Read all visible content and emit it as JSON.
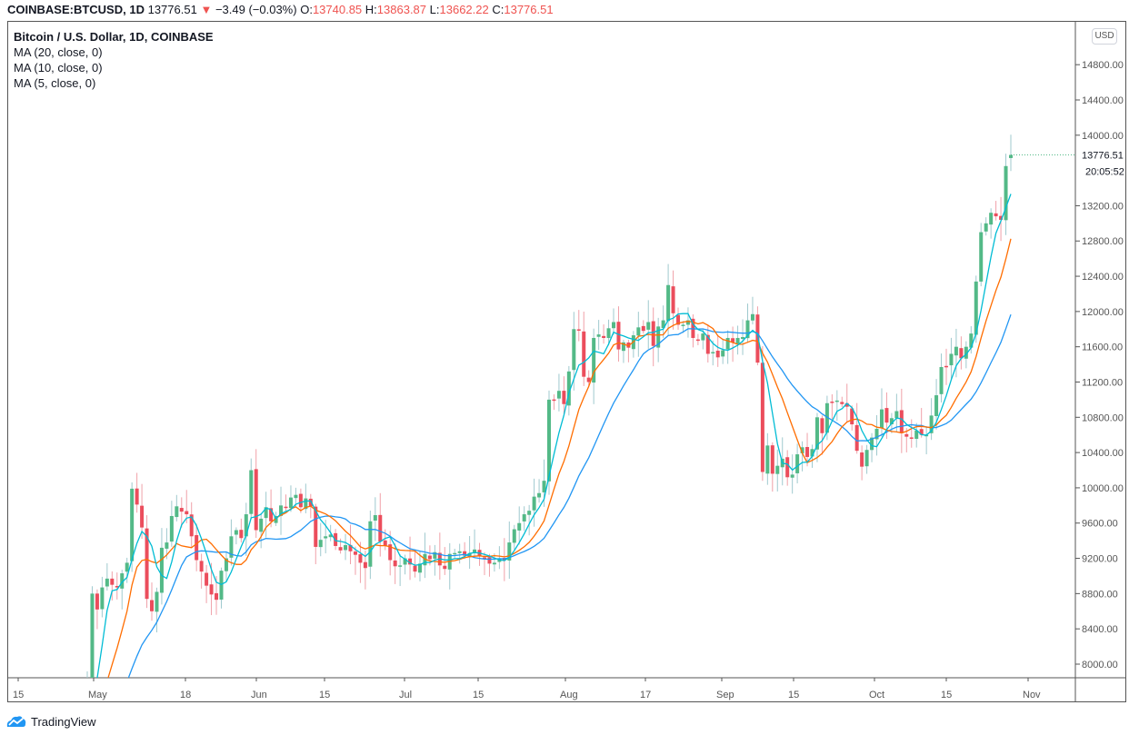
{
  "header": {
    "symbol": "COINBASE:BTCUSD, 1D",
    "last_price": "13776.51",
    "change_arrow": "▼",
    "change": "−3.49 (−0.03%)",
    "open_label": "O:",
    "open": "13740.85",
    "high_label": "H:",
    "high": "13863.87",
    "low_label": "L:",
    "low": "13662.22",
    "close_label": "C:",
    "close": "13776.51"
  },
  "legend": {
    "title": "Bitcoin / U.S. Dollar, 1D, COINBASE",
    "indicators": [
      "MA (20, close, 0)",
      "MA (10, close, 0)",
      "MA (5, close, 0)"
    ]
  },
  "price_axis": {
    "currency_badge": "USD",
    "ticks": [
      "14800.00",
      "14400.00",
      "14000.00",
      "13200.00",
      "12800.00",
      "12400.00",
      "12000.00",
      "11600.00",
      "11200.00",
      "10800.00",
      "10400.00",
      "10000.00",
      "9600.00",
      "9200.00",
      "8800.00",
      "8400.00",
      "8000.00"
    ],
    "last_price_label": "13776.51",
    "countdown_label": "20:05:52"
  },
  "time_axis": {
    "ticks": [
      "15",
      "May",
      "18",
      "Jun",
      "15",
      "Jul",
      "15",
      "Aug",
      "17",
      "Sep",
      "15",
      "Oct",
      "15",
      "Nov"
    ]
  },
  "brand": {
    "name": "TradingView"
  },
  "colors": {
    "up": "#53b987",
    "down": "#eb4d5c",
    "ma20": "#2196f3",
    "ma10": "#ff6d00",
    "ma5": "#00bcd4",
    "accent_red": "#ef5350"
  },
  "chart_data": {
    "type": "candlestick",
    "title": "Bitcoin / U.S. Dollar, 1D, COINBASE",
    "xlabel": "",
    "ylabel": "USD",
    "ylim": [
      7800,
      14900
    ],
    "x_tick_labels": [
      "15",
      "May",
      "18",
      "Jun",
      "15",
      "Jul",
      "15",
      "Aug",
      "17",
      "Sep",
      "15",
      "Oct",
      "15",
      "Nov"
    ],
    "y_tick_labels": [
      8000,
      8400,
      8800,
      9200,
      9600,
      10000,
      10400,
      10800,
      11200,
      11600,
      12000,
      12400,
      12800,
      13200,
      14000,
      14400
    ],
    "series_legend": [
      "MA (20, close, 0)",
      "MA (10, close, 0)",
      "MA (5, close, 0)"
    ],
    "last_close": 13776.51,
    "ohlc_approx": {
      "start": "2020-04-28",
      "close": [
        7780,
        8800,
        8620,
        8870,
        8970,
        8900,
        8870,
        9030,
        9150,
        9990,
        9810,
        9550,
        8740,
        8600,
        8820,
        9320,
        9380,
        9680,
        9790,
        9730,
        9700,
        9450,
        9180,
        9050,
        8890,
        8790,
        8730,
        9060,
        9200,
        9450,
        9520,
        9430,
        9700,
        10200,
        9520,
        9650,
        9780,
        9620,
        9680,
        9800,
        9780,
        9890,
        9920,
        9780,
        9880,
        9790,
        9330,
        9410,
        9450,
        9470,
        9340,
        9290,
        9350,
        9280,
        9240,
        9150,
        9090,
        9620,
        9690,
        9390,
        9340,
        9180,
        9110,
        9120,
        9200,
        9130,
        9050,
        9140,
        9250,
        9190,
        9270,
        9120,
        9080,
        9250,
        9260,
        9280,
        9230,
        9260,
        9300,
        9230,
        9200,
        9140,
        9150,
        9200,
        9180,
        9380,
        9530,
        9600,
        9700,
        9740,
        9900,
        9940,
        10080,
        11000,
        11000,
        11100,
        10950,
        11320,
        11800,
        11790,
        11260,
        11200,
        11700,
        11740,
        11700,
        11810,
        11880,
        11570,
        11650,
        11590,
        11730,
        11820,
        11780,
        11880,
        11610,
        11830,
        11900,
        12300,
        11980,
        11850,
        11850,
        11900,
        11700,
        11680,
        11750,
        11520,
        11540,
        11480,
        11560,
        11700,
        11650,
        11700,
        11710,
        11900,
        11970,
        11420,
        10180,
        10480,
        10160,
        10250,
        10330,
        10120,
        10150,
        10380,
        10460,
        10350,
        10440,
        10800,
        10620,
        10960,
        10970,
        10990,
        10950,
        10920,
        10720,
        10420,
        10240,
        10430,
        10570,
        10670,
        10890,
        10740,
        10790,
        10870,
        10620,
        10580,
        10560,
        10650,
        10600,
        10600,
        10820,
        11050,
        11370,
        11380,
        11520,
        11600,
        11470,
        11600,
        11750,
        12340,
        12900,
        13000,
        13120,
        13080,
        13040,
        13650,
        13776
      ]
    }
  }
}
